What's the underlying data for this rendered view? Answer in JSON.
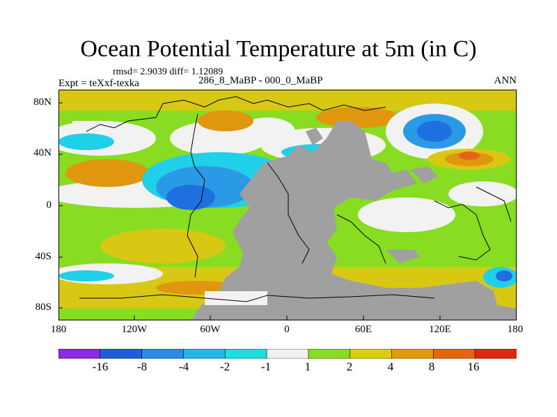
{
  "title": "Ocean Potential Temperature at 5m (in C)",
  "stats": "rmsd= 2.9039 diff= 1.12089",
  "expt": "Expt = teXxf-texka",
  "subtitle": "286_8_MaBP - 000_0_MaBP",
  "season": "ANN",
  "lat_labels": [
    "80N",
    "40N",
    "0",
    "40S",
    "80S"
  ],
  "lon_labels": [
    "180",
    "120W",
    "60W",
    "0",
    "60E",
    "120E",
    "180"
  ],
  "colorbar": {
    "labels": [
      "-16",
      "-8",
      "-4",
      "-2",
      "-1",
      "1",
      "2",
      "4",
      "8",
      "16"
    ],
    "colors": [
      "#8a2be2",
      "#1e5fd8",
      "#2c8ae6",
      "#27b4ea",
      "#20dede",
      "#f2f2f2",
      "#88dd22",
      "#dccc10",
      "#e09a10",
      "#e46410",
      "#dc2810"
    ]
  },
  "map_colors": {
    "land": "#a0a0a0",
    "blue": "#1e6fe0",
    "mid_blue": "#2a9ae6",
    "cyan": "#20cfe8",
    "white": "#f2f2f2",
    "green": "#88dd22",
    "yellow": "#d8c814",
    "orange": "#e0960e",
    "dark_orange": "#e4621a"
  }
}
